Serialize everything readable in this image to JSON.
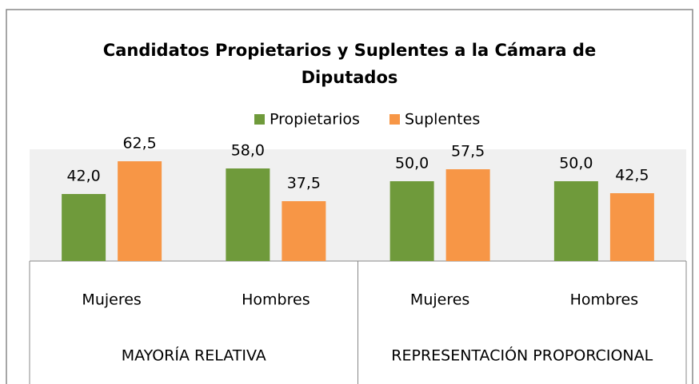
{
  "chart_data": {
    "type": "bar",
    "title": "Candidatos Propietarios y Suplentes a la Cámara de Diputados",
    "categories": [
      "Mujeres",
      "Hombres",
      "Mujeres",
      "Hombres"
    ],
    "category_groups": [
      "MAYORÍA RELATIVA",
      "REPRESENTACIÓN PROPORCIONAL"
    ],
    "series": [
      {
        "name": "Propietarios",
        "color": "#6f9a3b",
        "values": [
          42.0,
          58.0,
          50.0,
          50.0
        ],
        "value_labels": [
          "42,0",
          "58,0",
          "50,0",
          "50,0"
        ]
      },
      {
        "name": "Suplentes",
        "color": "#f79646",
        "values": [
          62.5,
          37.5,
          57.5,
          42.5
        ],
        "value_labels": [
          "62,5",
          "37,5",
          "57,5",
          "42,5"
        ]
      }
    ],
    "ylim": [
      0,
      70
    ],
    "legend": "top"
  }
}
